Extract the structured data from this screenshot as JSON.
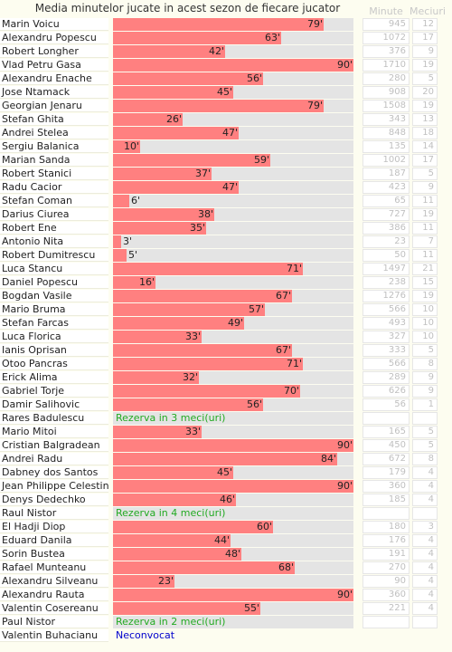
{
  "title": "Media minutelor jucate in acest sezon de fiecare jucator",
  "headers": {
    "minutes": "Minute",
    "matches": "Meciuri"
  },
  "colors": {
    "bar": "#ff8080",
    "track": "#e4e4e4",
    "reserve": "#22aa22",
    "unused": "#0000cc"
  },
  "chart_data": {
    "type": "bar",
    "orientation": "horizontal",
    "title": "Media minutelor jucate in acest sezon de fiecare jucator",
    "xlim": [
      0,
      90
    ],
    "value_suffix": "'",
    "categories": [
      "Marin Voicu",
      "Alexandru Popescu",
      "Robert Longher",
      "Vlad Petru Gasa",
      "Alexandru Enache",
      "Jose Ntamack",
      "Georgian Jenaru",
      "Stefan Ghita",
      "Andrei Stelea",
      "Sergiu Balanica",
      "Marian Sanda",
      "Robert Stanici",
      "Radu Cacior",
      "Stefan Coman",
      "Darius Ciurea",
      "Robert Ene",
      "Antonio Nita",
      "Robert Dumitrescu",
      "Luca Stancu",
      "Daniel Popescu",
      "Bogdan Vasile",
      "Mario Bruma",
      "Stefan Farcas",
      "Luca Florica",
      "Ianis Oprisan",
      "Otoo Pancras",
      "Erick Alima",
      "Gabriel Torje",
      "Damir Salihovic",
      "Rares Badulescu",
      "Mario Mitoi",
      "Cristian Balgradean",
      "Andrei Radu",
      "Dabney dos Santos",
      "Jean Philippe Celestin",
      "Denys Dedechko",
      "Raul Nistor",
      "El Hadji Diop",
      "Eduard Danila",
      "Sorin Bustea",
      "Rafael Munteanu",
      "Alexandru Silveanu",
      "Alexandru Rauta",
      "Valentin Cosereanu",
      "Paul Nistor",
      "Valentin Buhacianu"
    ],
    "rows": [
      {
        "name": "Marin Voicu",
        "avg": 79,
        "minutes": "945",
        "matches": "12"
      },
      {
        "name": "Alexandru Popescu",
        "avg": 63,
        "minutes": "1072",
        "matches": "17"
      },
      {
        "name": "Robert Longher",
        "avg": 42,
        "minutes": "376",
        "matches": "9"
      },
      {
        "name": "Vlad Petru Gasa",
        "avg": 90,
        "minutes": "1710",
        "matches": "19"
      },
      {
        "name": "Alexandru Enache",
        "avg": 56,
        "minutes": "280",
        "matches": "5"
      },
      {
        "name": "Jose Ntamack",
        "avg": 45,
        "minutes": "908",
        "matches": "20"
      },
      {
        "name": "Georgian Jenaru",
        "avg": 79,
        "minutes": "1508",
        "matches": "19"
      },
      {
        "name": "Stefan Ghita",
        "avg": 26,
        "minutes": "343",
        "matches": "13"
      },
      {
        "name": "Andrei Stelea",
        "avg": 47,
        "minutes": "848",
        "matches": "18"
      },
      {
        "name": "Sergiu Balanica",
        "avg": 10,
        "minutes": "135",
        "matches": "14"
      },
      {
        "name": "Marian Sanda",
        "avg": 59,
        "minutes": "1002",
        "matches": "17"
      },
      {
        "name": "Robert Stanici",
        "avg": 37,
        "minutes": "187",
        "matches": "5"
      },
      {
        "name": "Radu Cacior",
        "avg": 47,
        "minutes": "423",
        "matches": "9"
      },
      {
        "name": "Stefan Coman",
        "avg": 6,
        "minutes": "65",
        "matches": "11"
      },
      {
        "name": "Darius Ciurea",
        "avg": 38,
        "minutes": "727",
        "matches": "19"
      },
      {
        "name": "Robert Ene",
        "avg": 35,
        "minutes": "386",
        "matches": "11"
      },
      {
        "name": "Antonio Nita",
        "avg": 3,
        "minutes": "23",
        "matches": "7"
      },
      {
        "name": "Robert Dumitrescu",
        "avg": 5,
        "minutes": "50",
        "matches": "11"
      },
      {
        "name": "Luca Stancu",
        "avg": 71,
        "minutes": "1497",
        "matches": "21"
      },
      {
        "name": "Daniel Popescu",
        "avg": 16,
        "minutes": "238",
        "matches": "15"
      },
      {
        "name": "Bogdan Vasile",
        "avg": 67,
        "minutes": "1276",
        "matches": "19"
      },
      {
        "name": "Mario Bruma",
        "avg": 57,
        "minutes": "566",
        "matches": "10"
      },
      {
        "name": "Stefan Farcas",
        "avg": 49,
        "minutes": "493",
        "matches": "10"
      },
      {
        "name": "Luca Florica",
        "avg": 33,
        "minutes": "327",
        "matches": "10"
      },
      {
        "name": "Ianis Oprisan",
        "avg": 67,
        "minutes": "333",
        "matches": "5"
      },
      {
        "name": "Otoo Pancras",
        "avg": 71,
        "minutes": "566",
        "matches": "8"
      },
      {
        "name": "Erick Alima",
        "avg": 32,
        "minutes": "289",
        "matches": "9"
      },
      {
        "name": "Gabriel Torje",
        "avg": 70,
        "minutes": "626",
        "matches": "9"
      },
      {
        "name": "Damir Salihovic",
        "avg": 56,
        "minutes": "56",
        "matches": "1"
      },
      {
        "name": "Rares Badulescu",
        "avg": null,
        "status": "Rezerva in 3 meci(uri)",
        "status_type": "reserve",
        "minutes": "",
        "matches": ""
      },
      {
        "name": "Mario Mitoi",
        "avg": 33,
        "minutes": "165",
        "matches": "5"
      },
      {
        "name": "Cristian Balgradean",
        "avg": 90,
        "minutes": "450",
        "matches": "5"
      },
      {
        "name": "Andrei Radu",
        "avg": 84,
        "minutes": "672",
        "matches": "8"
      },
      {
        "name": "Dabney dos Santos",
        "avg": 45,
        "minutes": "179",
        "matches": "4"
      },
      {
        "name": "Jean Philippe Celestin",
        "avg": 90,
        "minutes": "360",
        "matches": "4"
      },
      {
        "name": "Denys Dedechko",
        "avg": 46,
        "minutes": "185",
        "matches": "4"
      },
      {
        "name": "Raul Nistor",
        "avg": null,
        "status": "Rezerva in 4 meci(uri)",
        "status_type": "reserve",
        "minutes": "",
        "matches": ""
      },
      {
        "name": "El Hadji Diop",
        "avg": 60,
        "minutes": "180",
        "matches": "3"
      },
      {
        "name": "Eduard Danila",
        "avg": 44,
        "minutes": "176",
        "matches": "4"
      },
      {
        "name": "Sorin Bustea",
        "avg": 48,
        "minutes": "191",
        "matches": "4"
      },
      {
        "name": "Rafael Munteanu",
        "avg": 68,
        "minutes": "270",
        "matches": "4"
      },
      {
        "name": "Alexandru Silveanu",
        "avg": 23,
        "minutes": "90",
        "matches": "4"
      },
      {
        "name": "Alexandru Rauta",
        "avg": 90,
        "minutes": "360",
        "matches": "4"
      },
      {
        "name": "Valentin Cosereanu",
        "avg": 55,
        "minutes": "221",
        "matches": "4"
      },
      {
        "name": "Paul Nistor",
        "avg": null,
        "status": "Rezerva in 2 meci(uri)",
        "status_type": "reserve",
        "minutes": "",
        "matches": ""
      },
      {
        "name": "Valentin Buhacianu",
        "avg": null,
        "status": "Neconvocat",
        "status_type": "unused",
        "minutes": "",
        "matches": ""
      }
    ]
  }
}
